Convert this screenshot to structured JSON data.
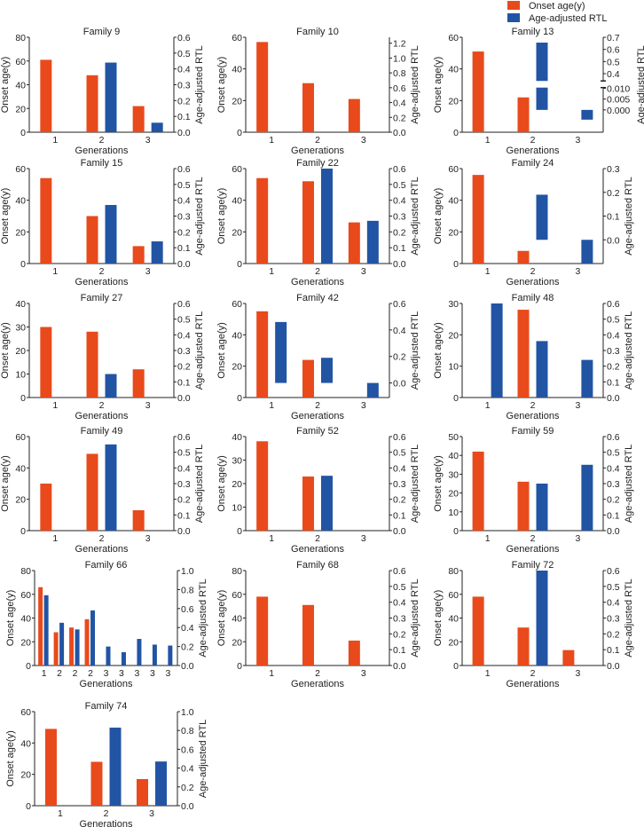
{
  "legend": {
    "onset": "Onset age(y)",
    "rtl": "Age-adjusted RTL"
  },
  "colors": {
    "onset": "#e84a1c",
    "rtl": "#2254a4"
  },
  "chart_data": [
    {
      "type": "bar",
      "title": "Family 9",
      "categories": [
        "1",
        "2",
        "3"
      ],
      "onset": [
        61,
        48,
        22
      ],
      "rtl": [
        null,
        0.44,
        0.06
      ],
      "ylim_left": [
        0,
        80
      ],
      "left_ticks": [
        "0",
        "20",
        "40",
        "60",
        "80"
      ],
      "ylim_right": [
        0,
        0.6
      ],
      "right_ticks": [
        "0.0",
        "0.1",
        "0.2",
        "0.3",
        "0.4",
        "0.5",
        "0.6"
      ],
      "xlabel": "Generations",
      "ylabel_left": "Onset age(y)",
      "ylabel_right": "Age-adjusted RTL"
    },
    {
      "type": "bar",
      "title": "Family 10",
      "categories": [
        "1",
        "2",
        "3"
      ],
      "onset": [
        57,
        31,
        21
      ],
      "rtl": [
        null,
        null,
        null
      ],
      "ylim_left": [
        0,
        60
      ],
      "left_ticks": [
        "0",
        "20",
        "40",
        "60"
      ],
      "ylim_right": [
        0,
        1.28
      ],
      "right_ticks": [
        "0.0",
        "0.2",
        "0.4",
        "0.6",
        "0.8",
        "1.0",
        "1.2"
      ],
      "xlabel": "Generations",
      "ylabel_left": "Onset age(y)",
      "ylabel_right": "Age-adjusted RTL"
    },
    {
      "type": "bar",
      "title": "Family 13",
      "categories": [
        "1",
        "2",
        "3"
      ],
      "onset": [
        51,
        22,
        null
      ],
      "rtl": [
        null,
        0.656,
        -0.0045
      ],
      "ylim_left": [
        0,
        60
      ],
      "left_ticks": [
        "0",
        "20",
        "40",
        "60"
      ],
      "right_break": {
        "upper": [
          0.34,
          0.7
        ],
        "lower": [
          -0.0103,
          0.0103
        ]
      },
      "right_ticks": [
        "0.4",
        "0.5",
        "0.6",
        "0.7",
        "0.000",
        "0.005",
        "0.010"
      ],
      "xlabel": "Generations",
      "ylabel_left": "Onset age(y)",
      "ylabel_right": "Age-adjusted RTL"
    },
    {
      "type": "bar",
      "title": "Family 15",
      "categories": [
        "1",
        "2",
        "3"
      ],
      "onset": [
        54,
        30,
        11
      ],
      "rtl": [
        null,
        0.37,
        0.14
      ],
      "ylim_left": [
        0,
        60
      ],
      "left_ticks": [
        "0",
        "20",
        "40",
        "60"
      ],
      "ylim_right": [
        0,
        0.6
      ],
      "right_ticks": [
        "0.0",
        "0.1",
        "0.2",
        "0.3",
        "0.4",
        "0.5",
        "0.6"
      ],
      "xlabel": "Generations",
      "ylabel_left": "Onset age(y)",
      "ylabel_right": "Age-adjusted RTL"
    },
    {
      "type": "bar",
      "title": "Family 22",
      "categories": [
        "1",
        "2",
        "3"
      ],
      "onset": [
        54,
        52,
        26
      ],
      "rtl": [
        null,
        0.6,
        0.27
      ],
      "ylim_left": [
        0,
        60
      ],
      "left_ticks": [
        "0",
        "20",
        "40",
        "60"
      ],
      "ylim_right": [
        0,
        0.6
      ],
      "right_ticks": [
        "0.0",
        "0.1",
        "0.2",
        "0.3",
        "0.4",
        "0.5",
        "0.6"
      ],
      "xlabel": "Generations",
      "ylabel_left": "Onset age(y)",
      "ylabel_right": "Age-adjusted RTL"
    },
    {
      "type": "bar",
      "title": "Family 24",
      "categories": [
        "1",
        "2",
        "3"
      ],
      "onset": [
        56,
        8,
        null
      ],
      "rtl": [
        null,
        0.19,
        -0.1
      ],
      "ylim_left": [
        0,
        60
      ],
      "left_ticks": [
        "0",
        "20",
        "40",
        "60"
      ],
      "ylim_right": [
        -0.1,
        0.3
      ],
      "right_ticks": [
        "0.0",
        "0.1",
        "0.2",
        "0.3"
      ],
      "xlabel": "Generations",
      "ylabel_left": "Onset age(y)",
      "ylabel_right": "Age-adjusted RTL"
    },
    {
      "type": "bar",
      "title": "Family 27",
      "categories": [
        "1",
        "2",
        "3"
      ],
      "onset": [
        30,
        28,
        12
      ],
      "rtl": [
        null,
        0.15,
        null
      ],
      "ylim_left": [
        0,
        40
      ],
      "left_ticks": [
        "0",
        "10",
        "20",
        "30",
        "40"
      ],
      "ylim_right": [
        0,
        0.6
      ],
      "right_ticks": [
        "0.0",
        "0.1",
        "0.2",
        "0.3",
        "0.4",
        "0.5",
        "0.6"
      ],
      "xlabel": "Generations",
      "ylabel_left": "Onset age(y)",
      "ylabel_right": "Age-adjusted RTL"
    },
    {
      "type": "bar",
      "title": "Family 42",
      "categories": [
        "1",
        "2",
        "3"
      ],
      "onset": [
        55,
        24,
        null
      ],
      "rtl": [
        0.46,
        0.19,
        -0.11
      ],
      "ylim_left": [
        0,
        60
      ],
      "left_ticks": [
        "0",
        "20",
        "40",
        "60"
      ],
      "ylim_right": [
        -0.11,
        0.6
      ],
      "right_ticks": [
        "0.0",
        "0.2",
        "0.4",
        "0.6"
      ],
      "xlabel": "Generations",
      "ylabel_left": "Onset age(y)",
      "ylabel_right": "Age-adjusted RTL"
    },
    {
      "type": "bar",
      "title": "Family 48",
      "categories": [
        "1",
        "2",
        "3"
      ],
      "onset": [
        null,
        28,
        null
      ],
      "rtl": [
        0.6,
        0.36,
        0.24
      ],
      "ylim_left": [
        0,
        30
      ],
      "left_ticks": [
        "0",
        "10",
        "20",
        "30"
      ],
      "ylim_right": [
        0,
        0.6
      ],
      "right_ticks": [
        "0.0",
        "0.1",
        "0.2",
        "0.3",
        "0.4",
        "0.5",
        "0.6"
      ],
      "xlabel": "Generations",
      "ylabel_left": "Onset age(y)",
      "ylabel_right": "Age-adjusted RTL"
    },
    {
      "type": "bar",
      "title": "Family 49",
      "categories": [
        "1",
        "2",
        "3"
      ],
      "onset": [
        30,
        49,
        13
      ],
      "rtl": [
        null,
        0.55,
        null
      ],
      "ylim_left": [
        0,
        60
      ],
      "left_ticks": [
        "0",
        "20",
        "40",
        "60"
      ],
      "ylim_right": [
        0,
        0.6
      ],
      "right_ticks": [
        "0.0",
        "0.1",
        "0.2",
        "0.3",
        "0.4",
        "0.5",
        "0.6"
      ],
      "xlabel": "Generations",
      "ylabel_left": "Onset age(y)",
      "ylabel_right": "Age-adjusted RTL"
    },
    {
      "type": "bar",
      "title": "Family 52",
      "categories": [
        "1",
        "2",
        "3"
      ],
      "onset": [
        38,
        23,
        null
      ],
      "rtl": [
        null,
        0.35,
        null
      ],
      "ylim_left": [
        0,
        40
      ],
      "left_ticks": [
        "0",
        "10",
        "20",
        "30",
        "40"
      ],
      "ylim_right": [
        0,
        0.6
      ],
      "right_ticks": [
        "0.0",
        "0.1",
        "0.2",
        "0.3",
        "0.4",
        "0.5",
        "0.6"
      ],
      "xlabel": "Generations",
      "ylabel_left": "Onset age(y)",
      "ylabel_right": "Age-adjusted RTL"
    },
    {
      "type": "bar",
      "title": "Family 59",
      "categories": [
        "1",
        "2",
        "3"
      ],
      "onset": [
        42,
        26,
        null
      ],
      "rtl": [
        null,
        0.3,
        0.42
      ],
      "ylim_left": [
        0,
        50
      ],
      "left_ticks": [
        "0",
        "10",
        "20",
        "30",
        "40",
        "50"
      ],
      "ylim_right": [
        0,
        0.6
      ],
      "right_ticks": [
        "0.0",
        "0.1",
        "0.2",
        "0.3",
        "0.4",
        "0.5",
        "0.6"
      ],
      "xlabel": "Generations",
      "ylabel_left": "Onset age(y)",
      "ylabel_right": "Age-adjusted RTL"
    },
    {
      "type": "bar",
      "title": "Family 66",
      "categories": [
        "1",
        "2",
        "2",
        "2",
        "3",
        "3",
        "3",
        "3",
        "3"
      ],
      "onset": [
        66,
        28,
        32,
        39,
        null,
        null,
        null,
        null,
        null
      ],
      "rtl": [
        0.74,
        0.45,
        0.38,
        0.58,
        0.2,
        0.14,
        0.28,
        0.22,
        0.21
      ],
      "ylim_left": [
        0,
        80
      ],
      "left_ticks": [
        "0",
        "20",
        "40",
        "60",
        "80"
      ],
      "ylim_right": [
        0,
        1.0
      ],
      "right_ticks": [
        "0.0",
        "0.2",
        "0.4",
        "0.6",
        "0.8",
        "1.0"
      ],
      "xlabel": "Generations",
      "ylabel_left": "Onset age(y)",
      "ylabel_right": "Age-adjusted RTL"
    },
    {
      "type": "bar",
      "title": "Family 68",
      "categories": [
        "1",
        "2",
        "3"
      ],
      "onset": [
        58,
        51,
        21
      ],
      "rtl": [
        null,
        null,
        null
      ],
      "ylim_left": [
        0,
        80
      ],
      "left_ticks": [
        "0",
        "20",
        "40",
        "60",
        "80"
      ],
      "ylim_right": [
        0,
        0.6
      ],
      "right_ticks": [
        "0.0",
        "0.1",
        "0.2",
        "0.3",
        "0.4",
        "0.5",
        "0.6"
      ],
      "xlabel": "Generations",
      "ylabel_left": "Onset age(y)",
      "ylabel_right": "Age-adjusted RTL"
    },
    {
      "type": "bar",
      "title": "Family 72",
      "categories": [
        "1",
        "2",
        "3"
      ],
      "onset": [
        58,
        32,
        13
      ],
      "rtl": [
        null,
        0.6,
        null
      ],
      "ylim_left": [
        0,
        80
      ],
      "left_ticks": [
        "0",
        "20",
        "40",
        "60",
        "80"
      ],
      "ylim_right": [
        0,
        0.6
      ],
      "right_ticks": [
        "0.0",
        "0.1",
        "0.2",
        "0.3",
        "0.4",
        "0.5",
        "0.6"
      ],
      "xlabel": "Generations",
      "ylabel_left": "Onset age(y)",
      "ylabel_right": "Age-adjusted RTL"
    },
    {
      "type": "bar",
      "title": "Family 74",
      "categories": [
        "1",
        "2",
        "3"
      ],
      "onset": [
        49,
        28,
        17
      ],
      "rtl": [
        null,
        0.83,
        0.47
      ],
      "ylim_left": [
        0,
        60
      ],
      "left_ticks": [
        "0",
        "20",
        "40",
        "60"
      ],
      "ylim_right": [
        0,
        1.0
      ],
      "right_ticks": [
        "0.0",
        "0.2",
        "0.4",
        "0.6",
        "0.8",
        "1.0"
      ],
      "xlabel": "Generations",
      "ylabel_left": "Onset age(y)",
      "ylabel_right": "Age-adjusted RTL"
    }
  ]
}
